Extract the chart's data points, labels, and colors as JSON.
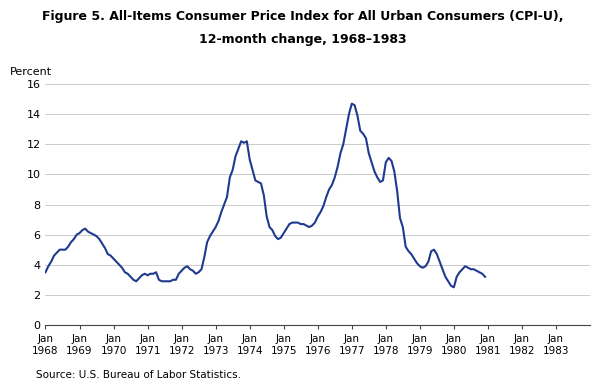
{
  "title_line1": "Figure 5. All-Items Consumer Price Index for All Urban Consumers (CPI-U),",
  "title_line2": "12-month change, 1968–1983",
  "ylabel": "Percent",
  "source": "Source: U.S. Bureau of Labor Statistics.",
  "ylim": [
    0,
    16
  ],
  "yticks": [
    0,
    2,
    4,
    6,
    8,
    10,
    12,
    14,
    16
  ],
  "line_color": "#1f3a8f",
  "line_width": 1.5,
  "background_color": "#ffffff",
  "data": [
    3.5,
    3.9,
    4.2,
    4.6,
    4.8,
    5.0,
    5.0,
    5.0,
    5.2,
    5.5,
    5.7,
    6.0,
    6.1,
    6.3,
    6.4,
    6.2,
    6.1,
    6.0,
    5.9,
    5.7,
    5.4,
    5.1,
    4.7,
    4.6,
    4.4,
    4.2,
    4.0,
    3.8,
    3.5,
    3.4,
    3.2,
    3.0,
    2.9,
    3.1,
    3.3,
    3.4,
    3.3,
    3.4,
    3.4,
    3.5,
    3.0,
    2.9,
    2.9,
    2.9,
    2.9,
    3.0,
    3.0,
    3.4,
    3.6,
    3.8,
    3.9,
    3.7,
    3.6,
    3.4,
    3.5,
    3.7,
    4.5,
    5.5,
    5.9,
    6.2,
    6.5,
    6.9,
    7.5,
    8.0,
    8.5,
    9.8,
    10.3,
    11.2,
    11.7,
    12.2,
    12.1,
    12.2,
    11.0,
    10.3,
    9.6,
    9.5,
    9.4,
    8.6,
    7.2,
    6.5,
    6.3,
    5.9,
    5.7,
    5.8,
    6.1,
    6.4,
    6.7,
    6.8,
    6.8,
    6.8,
    6.7,
    6.7,
    6.6,
    6.5,
    6.6,
    6.8,
    7.2,
    7.5,
    7.9,
    8.5,
    9.0,
    9.3,
    9.8,
    10.5,
    11.4,
    12.0,
    13.0,
    14.0,
    14.7,
    14.6,
    13.9,
    12.9,
    12.7,
    12.4,
    11.4,
    10.8,
    10.2,
    9.8,
    9.5,
    9.6,
    10.8,
    11.1,
    10.9,
    10.2,
    8.9,
    7.1,
    6.5,
    5.2,
    4.9,
    4.7,
    4.4,
    4.1,
    3.9,
    3.8,
    3.9,
    4.2,
    4.9,
    5.0,
    4.7,
    4.2,
    3.7,
    3.2,
    2.9,
    2.6,
    2.5,
    3.2,
    3.5,
    3.7,
    3.9,
    3.8,
    3.7,
    3.7,
    3.6,
    3.5,
    3.4,
    3.2
  ]
}
